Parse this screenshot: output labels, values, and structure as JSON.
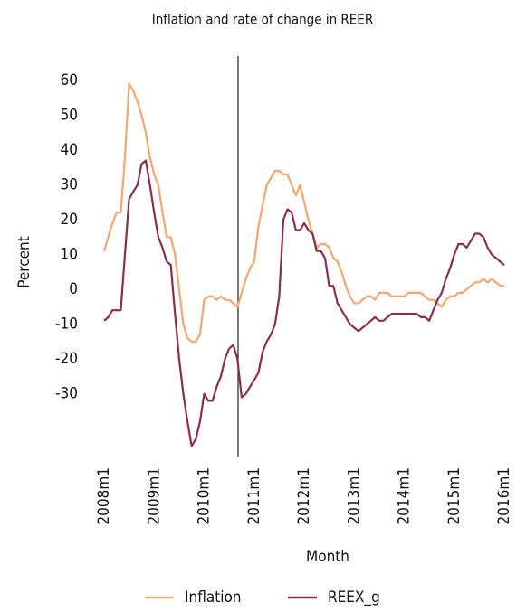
{
  "chart_data": {
    "type": "line",
    "title": "Inflation and rate of change in REER",
    "x_label": "Month",
    "y_label": "Percent",
    "categories": [
      "2008m1",
      null,
      null,
      null,
      null,
      null,
      null,
      null,
      null,
      null,
      null,
      null,
      "2009m1",
      null,
      null,
      null,
      null,
      null,
      null,
      null,
      null,
      null,
      null,
      null,
      "2010m1",
      null,
      null,
      null,
      null,
      null,
      null,
      null,
      null,
      null,
      null,
      null,
      "2011m1",
      null,
      null,
      null,
      null,
      null,
      null,
      null,
      null,
      null,
      null,
      null,
      "2012m1",
      null,
      null,
      null,
      null,
      null,
      null,
      null,
      null,
      null,
      null,
      null,
      "2013m1",
      null,
      null,
      null,
      null,
      null,
      null,
      null,
      null,
      null,
      null,
      null,
      "2014m1",
      null,
      null,
      null,
      null,
      null,
      null,
      null,
      null,
      null,
      null,
      null,
      "2015m1",
      null,
      null,
      null,
      null,
      null,
      null,
      null,
      null,
      null,
      null,
      null,
      "2016m1"
    ],
    "series": [
      {
        "name": "Inflation",
        "color": "#f4a66f",
        "values": [
          11,
          15,
          19,
          22,
          22,
          38,
          59,
          57,
          54,
          50,
          45,
          38,
          33,
          30,
          22,
          15,
          15,
          10,
          0,
          -10,
          -14,
          -15,
          -15,
          -13,
          -3,
          -2,
          -2,
          -3,
          -2,
          -3,
          -3,
          -4,
          -5,
          -1,
          3,
          6,
          8,
          18,
          24,
          30,
          32,
          34,
          34,
          33,
          33,
          30,
          27,
          30,
          25,
          20,
          16,
          12,
          13,
          13,
          12,
          9,
          8,
          5,
          1,
          -2,
          -4,
          -4,
          -3,
          -2,
          -2,
          -3,
          -1,
          -1,
          -1,
          -2,
          -2,
          -2,
          -2,
          -1,
          -1,
          -1,
          -1,
          -2,
          -3,
          -3,
          -4,
          -5,
          -3,
          -2,
          -2,
          -1,
          -1,
          0,
          1,
          2,
          2,
          3,
          2,
          3,
          2,
          1,
          1
        ]
      },
      {
        "name": "REEX_g",
        "color": "#8b2e4e",
        "values": [
          -9,
          -8,
          -6,
          -6,
          -6,
          10,
          26,
          28,
          30,
          36,
          37,
          30,
          22,
          15,
          12,
          8,
          7,
          -7,
          -20,
          -30,
          -38,
          -45,
          -43,
          -38,
          -30,
          -32,
          -32,
          -28,
          -25,
          -20,
          -17,
          -16,
          -20,
          -31,
          -30,
          -28,
          -26,
          -24,
          -18,
          -15,
          -13,
          -10,
          -2,
          20,
          23,
          22,
          17,
          17,
          19,
          17,
          16,
          11,
          11,
          9,
          1,
          1,
          -4,
          -6,
          -8,
          -10,
          -11,
          -12,
          -11,
          -10,
          -9,
          -8,
          -9,
          -9,
          -8,
          -7,
          -7,
          -7,
          -7,
          -7,
          -7,
          -7,
          -8,
          -8,
          -9,
          -6,
          -3,
          -1,
          3,
          6,
          10,
          13,
          13,
          12,
          14,
          16,
          16,
          15,
          12,
          10,
          9,
          8,
          7
        ]
      }
    ],
    "ylim": [
      -48,
      67
    ],
    "yticks": [
      60,
      50,
      40,
      30,
      20,
      10,
      0,
      -10,
      -20,
      -30
    ],
    "grid": false
  }
}
